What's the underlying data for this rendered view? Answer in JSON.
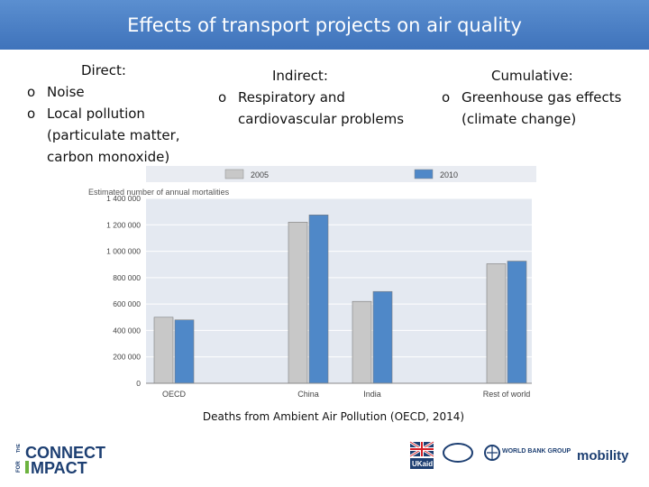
{
  "title": "Effects of transport projects on air quality",
  "bullet_glyph": "o",
  "columns": {
    "direct": {
      "heading": "Direct:",
      "items": [
        "Noise",
        "Local pollution (particulate matter, carbon monoxide)"
      ]
    },
    "indirect": {
      "heading": "Indirect:",
      "items": [
        "Respiratory and cardiovascular problems"
      ]
    },
    "cumulative": {
      "heading": "Cumulative:",
      "items": [
        "Greenhouse gas effects (climate change)"
      ]
    }
  },
  "caption": "Deaths from Ambient Air Pollution (OECD, 2014)",
  "chart_data": {
    "type": "bar",
    "title": "",
    "ylabel": "Estimated number of annual mortalities",
    "xlabel": "",
    "categories": [
      "OECD",
      "China",
      "India",
      "Rest of world"
    ],
    "series": [
      {
        "name": "2005",
        "values": [
          500000,
          1220000,
          620000,
          905000
        ],
        "color": "#c8c8c8"
      },
      {
        "name": "2010",
        "values": [
          480000,
          1275000,
          695000,
          925000
        ],
        "color": "#4f88c8"
      }
    ],
    "ylim": [
      0,
      1400000
    ],
    "yticks": [
      0,
      200000,
      400000,
      600000,
      800000,
      1000000,
      1200000,
      1400000
    ],
    "ytick_labels": [
      "0",
      "200 000",
      "400 000",
      "600 000",
      "800 000",
      "1 000 000",
      "1 200 000",
      "1 400 000"
    ],
    "legend": "top"
  },
  "footer": {
    "connect_text": "CONNECT",
    "impact_text": "MPACT",
    "for_text": "FOR",
    "the_text": "THE",
    "ukaid_text": "UKaid",
    "wbg_text": "WORLD BANK GROUP",
    "mobility_text": "mobility",
    "colors": {
      "navy": "#1d3f72",
      "green": "#6db33f",
      "red": "#d62128"
    }
  }
}
